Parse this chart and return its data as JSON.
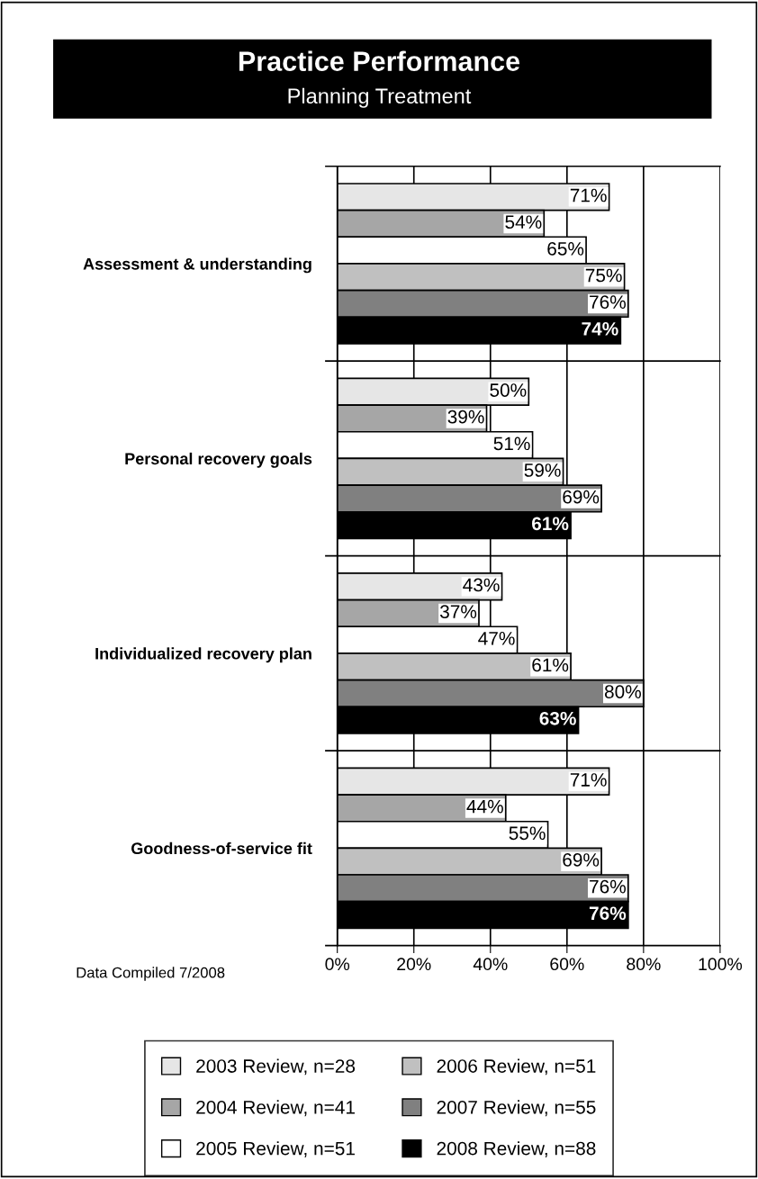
{
  "chart_data": {
    "type": "bar",
    "orientation": "horizontal",
    "title": "Practice Performance",
    "subtitle": "Planning Treatment",
    "categories": [
      "Assessment & understanding",
      "Personal recovery goals",
      "Individualized recovery plan",
      "Goodness-of-service fit"
    ],
    "series": [
      {
        "name": "2003 Review, n=28",
        "color": "#e6e6e6",
        "values": [
          71,
          50,
          43,
          71
        ],
        "value_labels": [
          "71%",
          "50%",
          "43%",
          "71%"
        ]
      },
      {
        "name": "2004 Review, n=41",
        "color": "#a6a6a6",
        "values": [
          54,
          39,
          37,
          44
        ],
        "value_labels": [
          "54%",
          "39%",
          "37%",
          "44%"
        ]
      },
      {
        "name": "2005 Review, n=51",
        "color": "#ffffff",
        "values": [
          65,
          51,
          47,
          55
        ],
        "value_labels": [
          "65%",
          "51%",
          "47%",
          "55%"
        ]
      },
      {
        "name": "2006 Review, n=51",
        "color": "#c0c0c0",
        "values": [
          75,
          59,
          61,
          69
        ],
        "value_labels": [
          "75%",
          "59%",
          "61%",
          "69%"
        ]
      },
      {
        "name": "2007 Review, n=55",
        "color": "#808080",
        "values": [
          76,
          69,
          80,
          76
        ],
        "value_labels": [
          "76%",
          "69%",
          "80%",
          "76%"
        ]
      },
      {
        "name": "2008 Review, n=88",
        "color": "#000000",
        "values": [
          74,
          61,
          63,
          76
        ],
        "value_labels": [
          "74%",
          "61%",
          "63%",
          "76%"
        ]
      }
    ],
    "xlim": [
      0,
      100
    ],
    "xticks": [
      {
        "value": 0,
        "label": "0%"
      },
      {
        "value": 20,
        "label": "20%"
      },
      {
        "value": 40,
        "label": "40%"
      },
      {
        "value": 60,
        "label": "60%"
      },
      {
        "value": 80,
        "label": "80%"
      },
      {
        "value": 100,
        "label": "100%"
      }
    ],
    "grid": true,
    "legend": "bottom",
    "annotations": [
      "Data Compiled 7/2008"
    ]
  }
}
